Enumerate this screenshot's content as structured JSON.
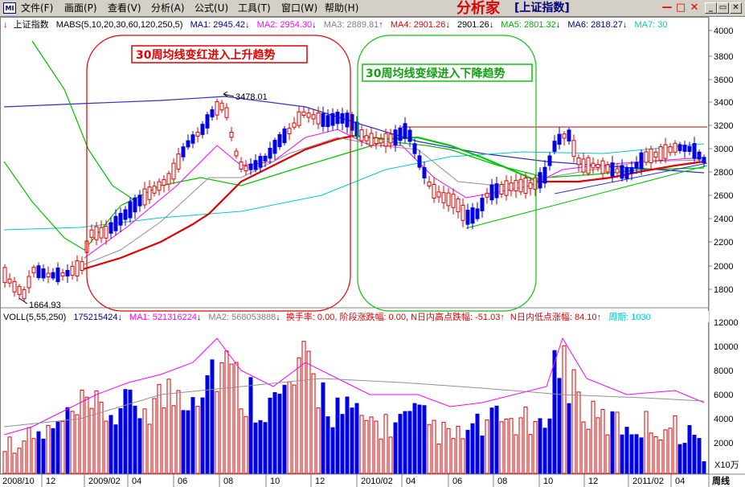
{
  "app_icon": "MI",
  "menu": [
    "文件(F)",
    "画面(P)",
    "查看(V)",
    "分析(A)",
    "公式(U)",
    "工具(T)",
    "窗口(W)",
    "帮助(H)"
  ],
  "window_title": "分析家",
  "window_subtitle": "[上证指数]",
  "win_buttons": {
    "min": "—",
    "restore": "□",
    "close": "✕"
  },
  "mdi_buttons": {
    "min": "_",
    "restore": "▭",
    "close": "✕"
  },
  "price_legend": {
    "symbol": "上证指数",
    "indicator": "MABS(5,10,20,30,60,120,250,5)",
    "items": [
      {
        "label": "MA1: 2945.42",
        "arrow": "↓",
        "color": "#000080"
      },
      {
        "label": "MA2: 2954.30",
        "arrow": "↓",
        "color": "#ff00ff"
      },
      {
        "label": "MA3: 2889.81",
        "arrow": "↑",
        "color": "#808080"
      },
      {
        "label": "MA4: 2901.26",
        "arrow": "↓",
        "color": "#e00000"
      },
      {
        "label": "2901.26",
        "arrow": "↓",
        "color": "#000000"
      },
      {
        "label": "MA5: 2801.32",
        "arrow": "↓",
        "color": "#00b000"
      },
      {
        "label": "MA6: 2818.27",
        "arrow": "↓",
        "color": "#000080"
      },
      {
        "label": "MA7: 30",
        "arrow": "",
        "color": "#00c8c8"
      }
    ]
  },
  "price_axis": [
    "4000",
    "3800",
    "3600",
    "3400",
    "3200",
    "3000",
    "2800",
    "2600",
    "2400",
    "2200",
    "2000",
    "1800"
  ],
  "annotations": {
    "high": "3478.01",
    "low": "1664.93",
    "up_trend": "30周均线变红进入上升趋势",
    "down_trend": "30周均线变绿进入下降趋势"
  },
  "vol_legend": {
    "name": "VOLL(5,55,250)",
    "items": [
      {
        "label": "175215424",
        "arrow": "↓",
        "color": "#000080"
      },
      {
        "label": "MA1: 521316224",
        "arrow": "↓",
        "color": "#ff00ff"
      },
      {
        "label": "MA2: 568053888",
        "arrow": "↓",
        "color": "#808080"
      },
      {
        "label": "换手率: 0.00, 阶段涨跌幅: 0.00, N日内高点跌幅: -51.03",
        "arrow": "↑",
        "color": "#e00000"
      },
      {
        "label": "N日内低点涨幅: 84.10",
        "arrow": "↑",
        "color": "#e00000"
      },
      {
        "label": "周期: 1030",
        "arrow": "",
        "color": "#00c8c8"
      }
    ]
  },
  "vol_axis": [
    "12000",
    "10000",
    "8000",
    "6000",
    "4000",
    "2000"
  ],
  "vol_unit": "X10万",
  "x_labels": [
    "2008/10",
    "12",
    "2009/02",
    "04",
    "06",
    "08",
    "10",
    "12",
    "2010/02",
    "04",
    "06",
    "08",
    "10",
    "12",
    "2011/02",
    "04"
  ],
  "period_label": "周线",
  "colors": {
    "up": "#e00000",
    "down": "#0000e0",
    "ma_red": "#e00000",
    "ma_green": "#00c800"
  }
}
